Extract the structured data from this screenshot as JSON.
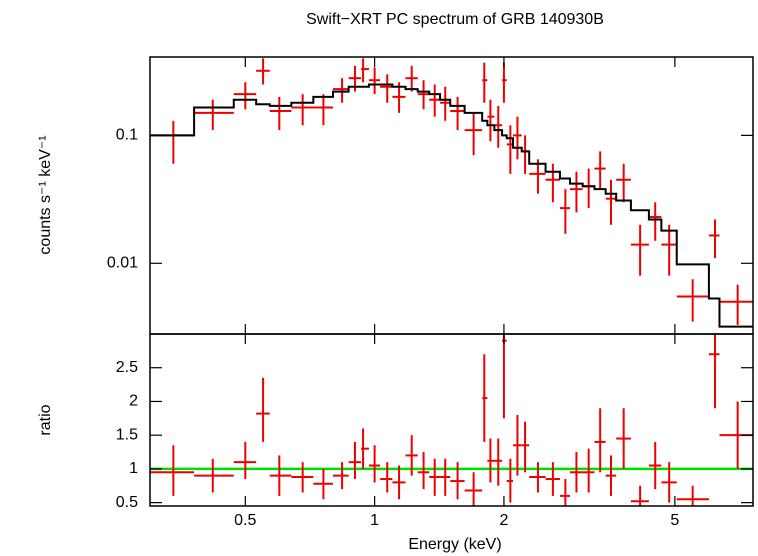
{
  "chart_data": [
    {
      "type": "errorbar",
      "title": "Swift−XRT PC spectrum of GRB 140930B",
      "y_label": "counts s⁻¹ keV⁻¹",
      "xscale": "log",
      "yscale": "log",
      "xlim": [
        0.3,
        7.6
      ],
      "ylim": [
        0.0028,
        0.41
      ],
      "yticks": [
        0.01,
        0.1
      ],
      "bins": [
        0.3,
        0.38,
        0.47,
        0.53,
        0.57,
        0.64,
        0.72,
        0.8,
        0.87,
        0.93,
        0.97,
        1.03,
        1.1,
        1.18,
        1.26,
        1.34,
        1.42,
        1.5,
        1.62,
        1.78,
        1.83,
        1.9,
        1.98,
        2.03,
        2.1,
        2.2,
        2.29,
        2.5,
        2.7,
        2.85,
        3.05,
        3.25,
        3.45,
        3.65,
        3.95,
        4.35,
        4.65,
        5.05,
        6.0,
        6.35,
        7.6
      ],
      "x": [
        0.34,
        0.42,
        0.5,
        0.55,
        0.6,
        0.68,
        0.76,
        0.84,
        0.9,
        0.94,
        1.0,
        1.07,
        1.14,
        1.22,
        1.3,
        1.38,
        1.46,
        1.56,
        1.7,
        1.8,
        1.86,
        1.94,
        2.0,
        2.07,
        2.15,
        2.24,
        2.4,
        2.6,
        2.78,
        2.95,
        3.15,
        3.35,
        3.55,
        3.8,
        4.15,
        4.5,
        4.85,
        5.5,
        6.2,
        7.0
      ],
      "series": [
        {
          "name": "data",
          "style": "errorbar",
          "color": "#ee0000",
          "values": [
            0.1,
            0.15,
            0.21,
            0.32,
            0.155,
            0.165,
            0.165,
            0.23,
            0.28,
            0.33,
            0.27,
            0.24,
            0.2,
            0.28,
            0.21,
            0.19,
            0.18,
            0.155,
            0.11,
            0.27,
            0.14,
            0.12,
            0.27,
            0.085,
            0.1,
            0.075,
            0.05,
            0.045,
            0.027,
            0.038,
            0.04,
            0.055,
            0.032,
            0.045,
            0.014,
            0.023,
            0.014,
            0.0055,
            0.0165,
            0.005
          ],
          "err_lo": [
            0.06,
            0.11,
            0.16,
            0.25,
            0.11,
            0.12,
            0.12,
            0.18,
            0.22,
            0.26,
            0.21,
            0.18,
            0.15,
            0.22,
            0.16,
            0.14,
            0.13,
            0.11,
            0.07,
            0.18,
            0.09,
            0.08,
            0.18,
            0.05,
            0.065,
            0.05,
            0.035,
            0.03,
            0.017,
            0.025,
            0.027,
            0.038,
            0.02,
            0.03,
            0.008,
            0.015,
            0.008,
            0.0035,
            0.011,
            0.0033
          ],
          "err_hi": [
            0.13,
            0.19,
            0.26,
            0.4,
            0.2,
            0.21,
            0.21,
            0.28,
            0.35,
            0.4,
            0.34,
            0.3,
            0.26,
            0.35,
            0.27,
            0.25,
            0.24,
            0.2,
            0.15,
            0.37,
            0.19,
            0.17,
            0.37,
            0.12,
            0.14,
            0.1,
            0.065,
            0.06,
            0.038,
            0.052,
            0.055,
            0.075,
            0.045,
            0.06,
            0.02,
            0.03,
            0.02,
            0.0075,
            0.022,
            0.0068
          ]
        },
        {
          "name": "model",
          "style": "step",
          "color": "#000000",
          "values": [
            0.1,
            0.165,
            0.19,
            0.175,
            0.17,
            0.18,
            0.2,
            0.22,
            0.24,
            0.24,
            0.25,
            0.25,
            0.24,
            0.23,
            0.22,
            0.21,
            0.19,
            0.17,
            0.15,
            0.13,
            0.12,
            0.11,
            0.1,
            0.095,
            0.08,
            0.075,
            0.06,
            0.052,
            0.046,
            0.042,
            0.04,
            0.038,
            0.035,
            0.031,
            0.026,
            0.022,
            0.018,
            0.0098,
            0.0053,
            0.0032
          ]
        }
      ]
    },
    {
      "type": "errorbar",
      "y_label": "ratio",
      "x_label": "Energy (keV)",
      "xscale": "log",
      "xlim": [
        0.3,
        7.6
      ],
      "ylim": [
        0.45,
        3.0
      ],
      "xticks": [
        0.5,
        1,
        2,
        5
      ],
      "yticks": [
        0.5,
        1,
        1.5,
        2,
        2.5
      ],
      "hline": 1,
      "hline_color": "#00dd00",
      "bins": [
        0.3,
        0.38,
        0.47,
        0.53,
        0.57,
        0.64,
        0.72,
        0.8,
        0.87,
        0.93,
        0.97,
        1.03,
        1.1,
        1.18,
        1.26,
        1.34,
        1.42,
        1.5,
        1.62,
        1.78,
        1.83,
        1.9,
        1.98,
        2.03,
        2.1,
        2.2,
        2.29,
        2.5,
        2.7,
        2.85,
        3.05,
        3.25,
        3.45,
        3.65,
        3.95,
        4.35,
        4.65,
        5.05,
        6.0,
        6.35,
        7.6
      ],
      "x": [
        0.34,
        0.42,
        0.5,
        0.55,
        0.6,
        0.68,
        0.76,
        0.84,
        0.9,
        0.94,
        1.0,
        1.07,
        1.14,
        1.22,
        1.3,
        1.38,
        1.46,
        1.56,
        1.7,
        1.8,
        1.86,
        1.94,
        2.0,
        2.07,
        2.15,
        2.24,
        2.4,
        2.6,
        2.78,
        2.95,
        3.15,
        3.35,
        3.55,
        3.8,
        4.15,
        4.5,
        4.85,
        5.5,
        6.2,
        7.0
      ],
      "series": [
        {
          "name": "ratio",
          "style": "errorbar",
          "color": "#ee0000",
          "values": [
            0.95,
            0.9,
            1.1,
            1.82,
            0.9,
            0.88,
            0.78,
            0.9,
            1.1,
            1.3,
            1.05,
            0.85,
            0.8,
            1.2,
            0.95,
            0.88,
            0.88,
            0.82,
            0.68,
            2.05,
            1.12,
            1.12,
            2.9,
            0.82,
            1.35,
            1.35,
            0.88,
            0.85,
            0.6,
            0.95,
            0.95,
            1.4,
            0.9,
            1.45,
            0.52,
            1.05,
            0.8,
            0.55,
            2.7,
            1.5
          ],
          "err_lo": [
            0.6,
            0.65,
            0.85,
            1.4,
            0.6,
            0.65,
            0.55,
            0.7,
            0.85,
            1.0,
            0.8,
            0.65,
            0.55,
            0.9,
            0.7,
            0.6,
            0.6,
            0.55,
            0.45,
            1.4,
            0.8,
            0.75,
            1.75,
            0.5,
            0.9,
            0.95,
            0.65,
            0.6,
            0.4,
            0.65,
            0.65,
            0.95,
            0.6,
            1.0,
            0.45,
            0.7,
            0.5,
            0.4,
            1.9,
            1.0
          ],
          "err_hi": [
            1.35,
            1.15,
            1.4,
            2.35,
            1.2,
            1.1,
            1.0,
            1.1,
            1.4,
            1.6,
            1.35,
            1.1,
            1.05,
            1.5,
            1.25,
            1.15,
            1.15,
            1.1,
            0.95,
            2.7,
            1.45,
            1.45,
            3.1,
            1.15,
            1.8,
            1.7,
            1.1,
            1.1,
            0.85,
            1.25,
            1.3,
            1.9,
            1.2,
            1.9,
            0.75,
            1.4,
            1.1,
            0.75,
            3.2,
            2.0
          ]
        }
      ]
    }
  ]
}
